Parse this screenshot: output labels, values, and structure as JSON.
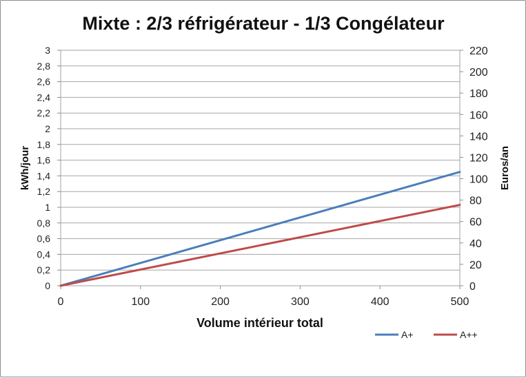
{
  "chart_data": {
    "type": "line",
    "title": "Mixte :  2/3 réfrigérateur - 1/3 Congélateur",
    "xlabel": "Volume intérieur total",
    "ylabel": "kWh/jour",
    "y2label": "Euros/an",
    "xlim": [
      0,
      500
    ],
    "ylim": [
      0,
      3
    ],
    "y2lim": [
      0,
      220
    ],
    "x_ticks": [
      "0",
      "100",
      "200",
      "300",
      "400",
      "500"
    ],
    "y_ticks": [
      "0",
      "0,2",
      "0,4",
      "0,6",
      "0,8",
      "1",
      "1,2",
      "1,4",
      "1,6",
      "1,8",
      "2",
      "2,2",
      "2,4",
      "2,6",
      "2,8",
      "3"
    ],
    "y2_ticks": [
      "0",
      "20",
      "40",
      "60",
      "80",
      "100",
      "120",
      "140",
      "160",
      "180",
      "200",
      "220"
    ],
    "grid": "horizontal",
    "legend_position": "bottom-right",
    "series": [
      {
        "name": "A+",
        "color": "#4a7ebb",
        "x": [
          0,
          500
        ],
        "y": [
          0,
          1.45
        ]
      },
      {
        "name": "A++",
        "color": "#be4b48",
        "x": [
          0,
          500
        ],
        "y": [
          0,
          1.03
        ]
      }
    ]
  }
}
